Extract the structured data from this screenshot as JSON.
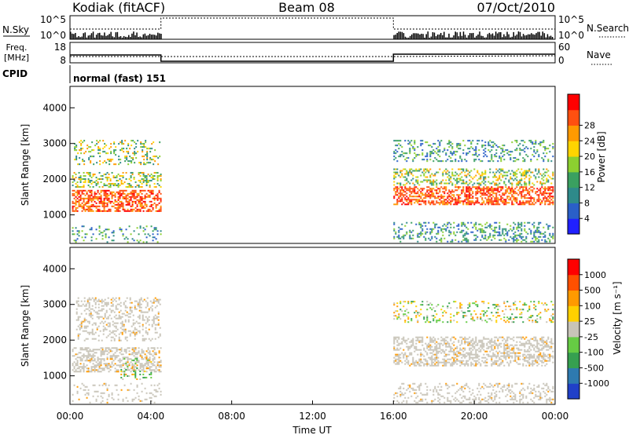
{
  "header": {
    "station": "Kodiak (fitACF)",
    "beam": "Beam 08",
    "date": "07/Oct/2010"
  },
  "strips": {
    "nsky_label": "N.Sky",
    "nsearch_label": "N.Search",
    "left_ticks": [
      "10^5",
      "10^0"
    ],
    "right_ticks": [
      "10^5",
      "10^0"
    ],
    "freq_label_1": "Freq.",
    "freq_label_2": "[MHz]",
    "freq_ticks": [
      "18",
      "8"
    ],
    "nave_label": "Nave",
    "nave_ticks": [
      "60",
      "0"
    ],
    "cpid_label": "CPID",
    "cpid_value": "normal (fast) 151"
  },
  "chart_data": [
    {
      "type": "heatmap",
      "name": "power",
      "ylabel": "Slant Range [km]",
      "yticks": [
        "1000",
        "2000",
        "3000",
        "4000"
      ],
      "ylim": [
        200,
        4600
      ],
      "xlim": [
        0,
        24
      ],
      "data_gap_hours": [
        4.5,
        16.0
      ],
      "colorbar": {
        "label": "Power [dB]",
        "ticks": [
          "4",
          "8",
          "12",
          "16",
          "20",
          "24",
          "28"
        ],
        "colors": [
          "#2020ff",
          "#2a5fc8",
          "#2e8a8a",
          "#3aa060",
          "#8ccf30",
          "#ffd400",
          "#ff9a00",
          "#ff5010",
          "#ff0000"
        ]
      }
    },
    {
      "type": "heatmap",
      "name": "velocity",
      "ylabel": "Slant Range [km]",
      "yticks": [
        "1000",
        "2000",
        "3000",
        "4000"
      ],
      "ylim": [
        200,
        4600
      ],
      "xlim": [
        0,
        24
      ],
      "colorbar": {
        "label": "Velocity [m s⁻¹]",
        "ticks": [
          "1000",
          "500",
          "100",
          "25",
          "-25",
          "-100",
          "-500",
          "-1000"
        ],
        "colors": [
          "#2040c8",
          "#2e7ab0",
          "#36a050",
          "#66cc44",
          "#c8c4b8",
          "#ffd000",
          "#ff9a00",
          "#ff5000",
          "#ff0000"
        ]
      }
    }
  ],
  "xaxis": {
    "ticks": [
      "00:00",
      "04:00",
      "08:00",
      "12:00",
      "16:00",
      "20:00",
      "00:00"
    ],
    "label": "Time UT"
  }
}
